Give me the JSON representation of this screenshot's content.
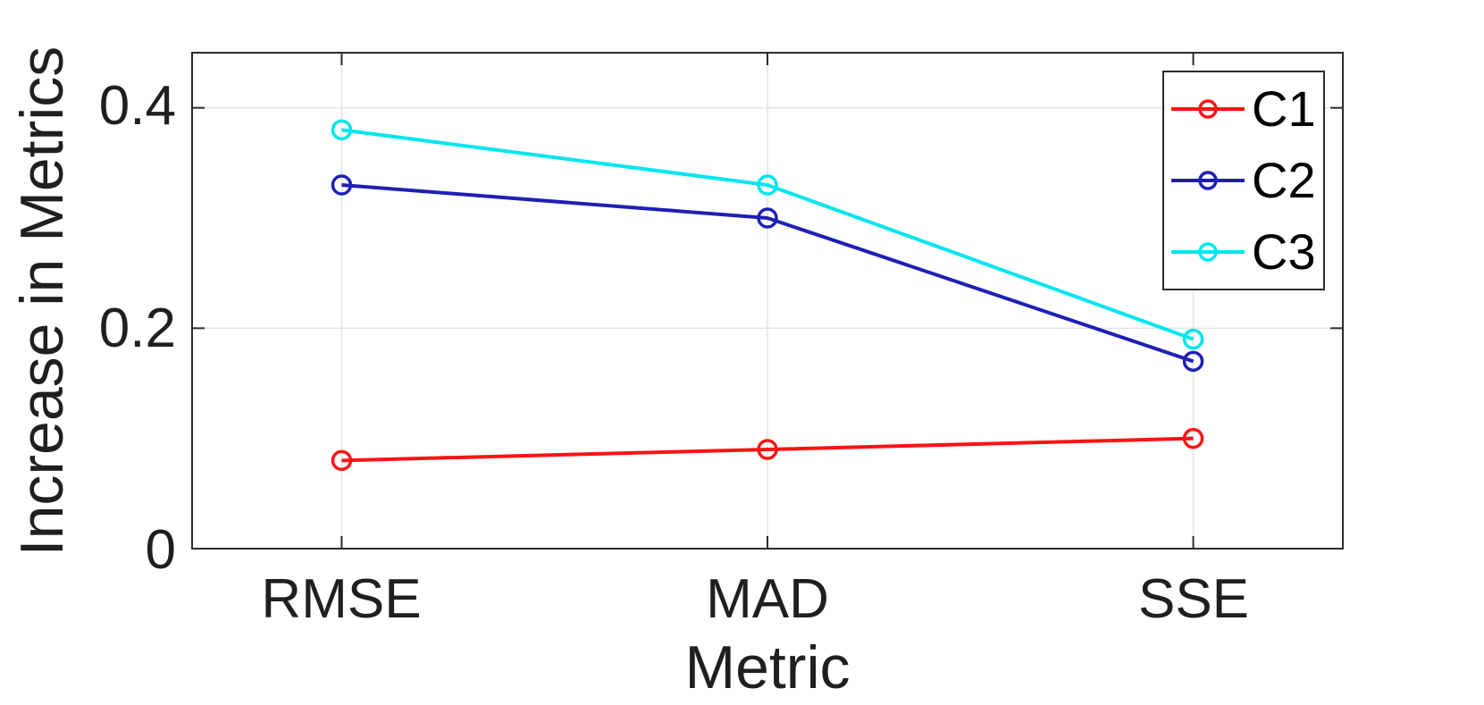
{
  "chart_data": {
    "type": "line",
    "title": "",
    "xlabel": "Metric",
    "ylabel": "Increase in Metrics",
    "categories": [
      "RMSE",
      "MAD",
      "SSE"
    ],
    "series": [
      {
        "name": "C1",
        "color": "#fa1414",
        "values": [
          0.08,
          0.09,
          0.1
        ]
      },
      {
        "name": "C2",
        "color": "#1f1fb4",
        "values": [
          0.33,
          0.3,
          0.17
        ]
      },
      {
        "name": "C3",
        "color": "#00e6ee",
        "values": [
          0.38,
          0.33,
          0.19
        ]
      }
    ],
    "marker": "o",
    "ylim": [
      0,
      0.45
    ],
    "yticks": [
      0,
      0.2,
      0.4
    ],
    "ytick_labels": [
      "0",
      "0.2",
      "0.4"
    ],
    "grid": true,
    "legend_position": "northeast",
    "colors": {
      "axis": "#2b2b2b",
      "grid": "#e4e4e4",
      "text": "#1f1f1f",
      "background": "#ffffff"
    }
  }
}
